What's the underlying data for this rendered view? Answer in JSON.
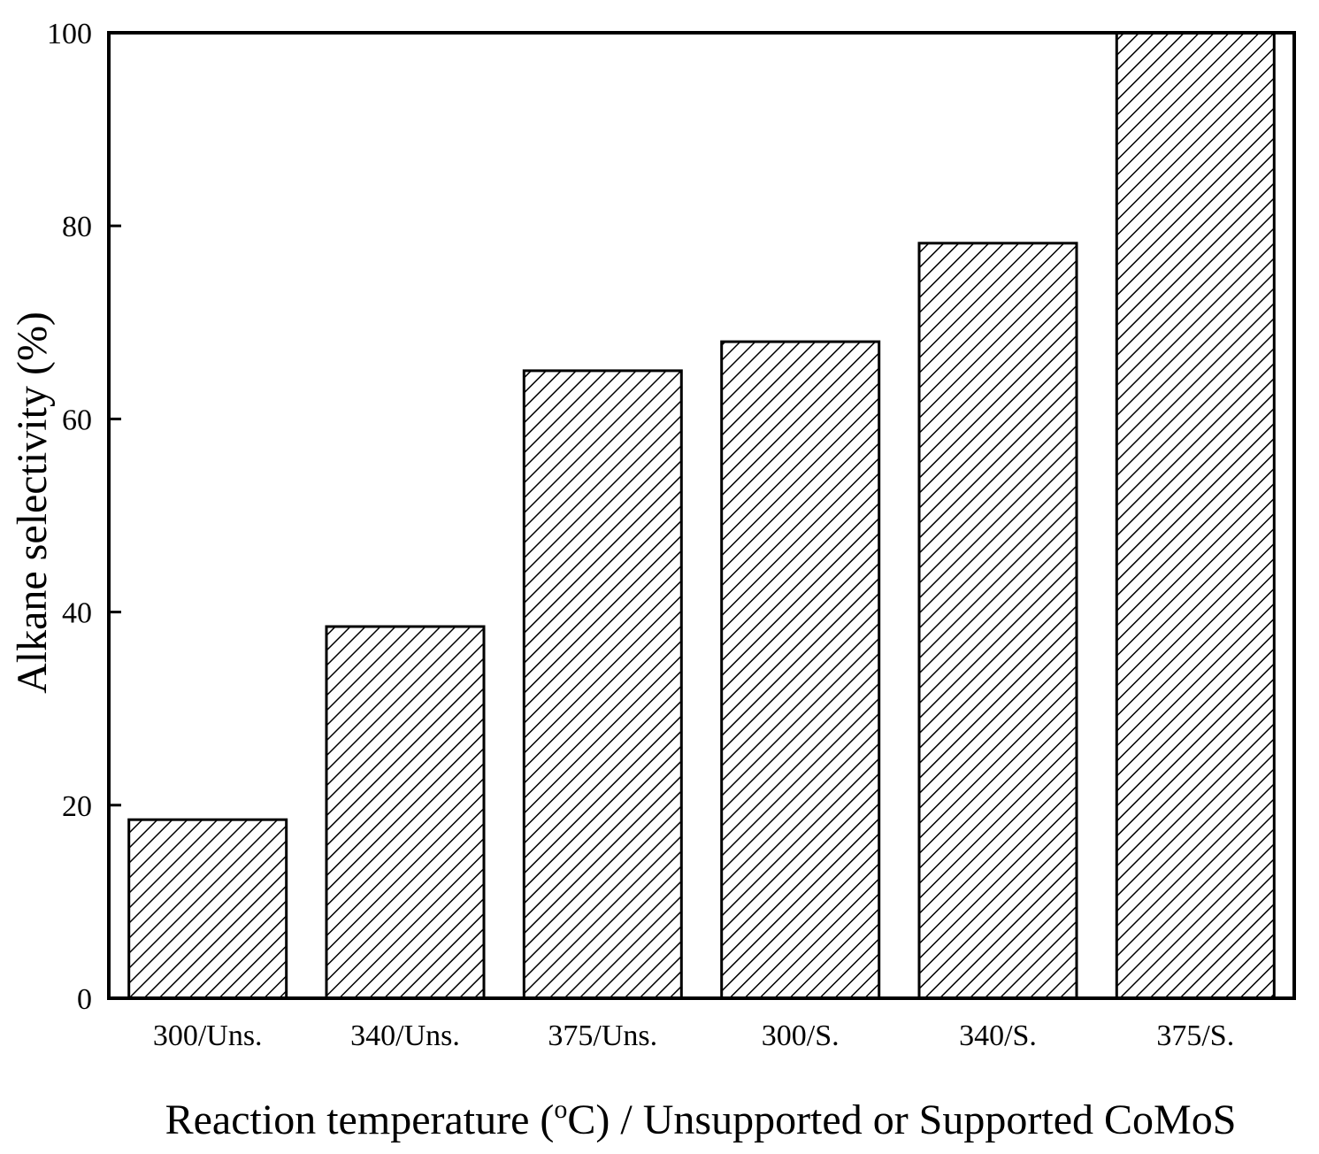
{
  "chart_data": {
    "type": "bar",
    "categories": [
      "300/Uns.",
      "340/Uns.",
      "375/Uns.",
      "300/S.",
      "340/S.",
      "375/S."
    ],
    "values": [
      18.5,
      38.5,
      65,
      68,
      78.2,
      100
    ],
    "ylabel": "Alkane selectivity (%)",
    "xlabel_parts": {
      "before": "Reaction temperature (",
      "superscript": "o",
      "after": "C) / Unsupported or Supported CoMoS"
    },
    "ylim": [
      0,
      100
    ],
    "yticks": [
      0,
      20,
      40,
      60,
      80,
      100
    ],
    "grid": false,
    "legend": "none",
    "bar_fill": "diagonal hatch",
    "colors": {
      "stroke": "#000000",
      "hatch": "#000000",
      "background": "#ffffff"
    }
  }
}
